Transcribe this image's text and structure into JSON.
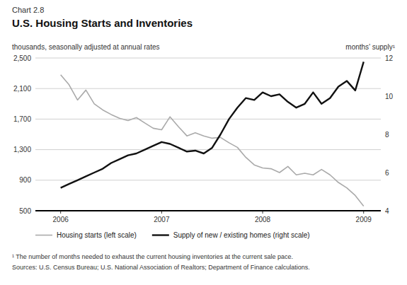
{
  "chart_data": {
    "type": "line",
    "subtitle": "Chart 2.8",
    "title": "U.S. Housing Starts and Inventories",
    "y_label": "thousands, seasonally adjusted at annual rates",
    "y2_label": "months’ supply¹",
    "annotations": [
      "¹ The number of months needed to exhaust the current housing inventories at the current sale pace.",
      "Sources: U.S. Census Bureau; U.S. National Association of Realtors; Department of Finance calculations."
    ],
    "x": [
      2006.0,
      2006.083,
      2006.167,
      2006.25,
      2006.333,
      2006.417,
      2006.5,
      2006.583,
      2006.667,
      2006.75,
      2006.833,
      2006.917,
      2007.0,
      2007.083,
      2007.167,
      2007.25,
      2007.333,
      2007.417,
      2007.5,
      2007.583,
      2007.667,
      2007.75,
      2007.833,
      2007.917,
      2008.0,
      2008.083,
      2008.167,
      2008.25,
      2008.333,
      2008.417,
      2008.5,
      2008.583,
      2008.667,
      2008.75,
      2008.833,
      2008.917,
      2009.0
    ],
    "series": [
      {
        "name": "Housing starts (left scale)",
        "color": "#aaaaaa",
        "values": [
          2280,
          2150,
          1950,
          2080,
          1900,
          1820,
          1760,
          1710,
          1680,
          1720,
          1650,
          1580,
          1560,
          1730,
          1600,
          1480,
          1520,
          1480,
          1450,
          1460,
          1390,
          1330,
          1200,
          1100,
          1060,
          1050,
          1000,
          1080,
          970,
          990,
          970,
          1040,
          970,
          870,
          800,
          700,
          560
        ]
      },
      {
        "name": "Supply of new / existing homes (right scale)",
        "color": "#111111",
        "axis": "y2",
        "values": [
          5.2,
          5.4,
          5.6,
          5.8,
          6.0,
          6.2,
          6.5,
          6.7,
          6.9,
          7.0,
          7.2,
          7.4,
          7.6,
          7.5,
          7.3,
          7.1,
          7.15,
          7.0,
          7.3,
          8.0,
          8.8,
          9.4,
          9.9,
          9.8,
          10.2,
          10.0,
          10.1,
          9.7,
          9.4,
          9.6,
          10.2,
          9.6,
          9.9,
          10.5,
          10.8,
          10.3,
          11.8
        ]
      }
    ],
    "xlim": [
      2005.75,
      2009.17
    ],
    "xticks": [
      2006,
      2007,
      2008,
      2009
    ],
    "ylim": [
      500,
      2500
    ],
    "yticks": [
      500,
      900,
      {
        "value": 1300,
        "label": "1,300"
      },
      {
        "value": 1700,
        "label": "1,700"
      },
      {
        "value": 2100,
        "label": "2,100"
      },
      {
        "value": 2500,
        "label": "2,500"
      }
    ],
    "y2lim": [
      4,
      12
    ],
    "y2ticks": [
      4,
      6,
      8,
      10,
      12
    ],
    "grid": true,
    "legend": "bottom"
  }
}
